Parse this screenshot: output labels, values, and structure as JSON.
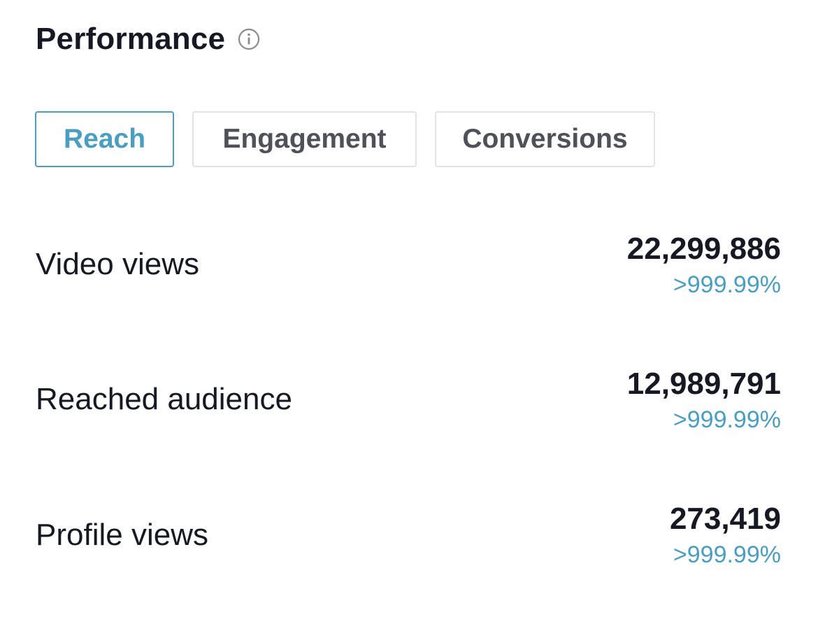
{
  "header": {
    "title": "Performance",
    "info_icon": "info-circle-icon"
  },
  "tabs": [
    {
      "label": "Reach",
      "active": true
    },
    {
      "label": "Engagement",
      "active": false
    },
    {
      "label": "Conversions",
      "active": false
    }
  ],
  "metrics": [
    {
      "label": "Video views",
      "value": "22,299,886",
      "change": ">999.99%"
    },
    {
      "label": "Reached audience",
      "value": "12,989,791",
      "change": ">999.99%"
    },
    {
      "label": "Profile views",
      "value": "273,419",
      "change": ">999.99%"
    }
  ],
  "colors": {
    "accent": "#4a9ec2",
    "text_primary": "#161823",
    "text_secondary": "#4f5058",
    "border": "#e3e3e4"
  }
}
